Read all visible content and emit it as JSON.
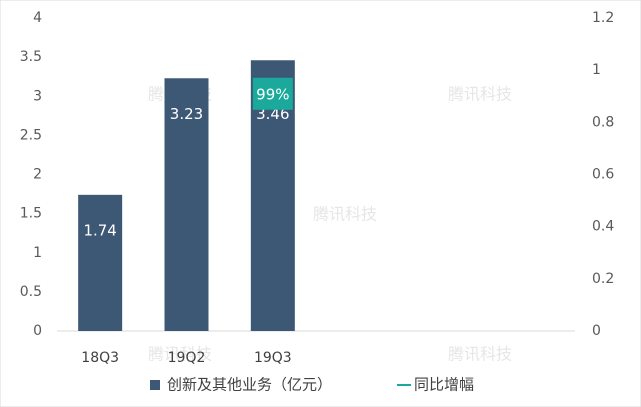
{
  "chart_data": {
    "type": "bar",
    "watermark": "腾讯科技",
    "categories": [
      "18Q3",
      "19Q2",
      "19Q3",
      null,
      null,
      null
    ],
    "series": [
      {
        "name": "创新及其他业务（亿元）",
        "type": "bar",
        "color": "#3d5875",
        "values": [
          1.74,
          3.23,
          3.46,
          null,
          null,
          null
        ]
      },
      {
        "name": "同比增幅",
        "type": "line",
        "axis": "y2",
        "color": "#1aa99a",
        "values": [
          null,
          null,
          0.99,
          null,
          null,
          null
        ],
        "value_labels": [
          null,
          null,
          "99%",
          null,
          null,
          null
        ]
      }
    ],
    "ylim": [
      0,
      4
    ],
    "yticks": [
      0,
      0.5,
      1,
      1.5,
      2,
      2.5,
      3,
      3.5,
      4
    ],
    "y2lim": [
      0,
      1.2
    ],
    "y2ticks": [
      0,
      0.2,
      0.4,
      0.6,
      0.8,
      1,
      1.2
    ],
    "grid": false,
    "legend": "bottom"
  }
}
